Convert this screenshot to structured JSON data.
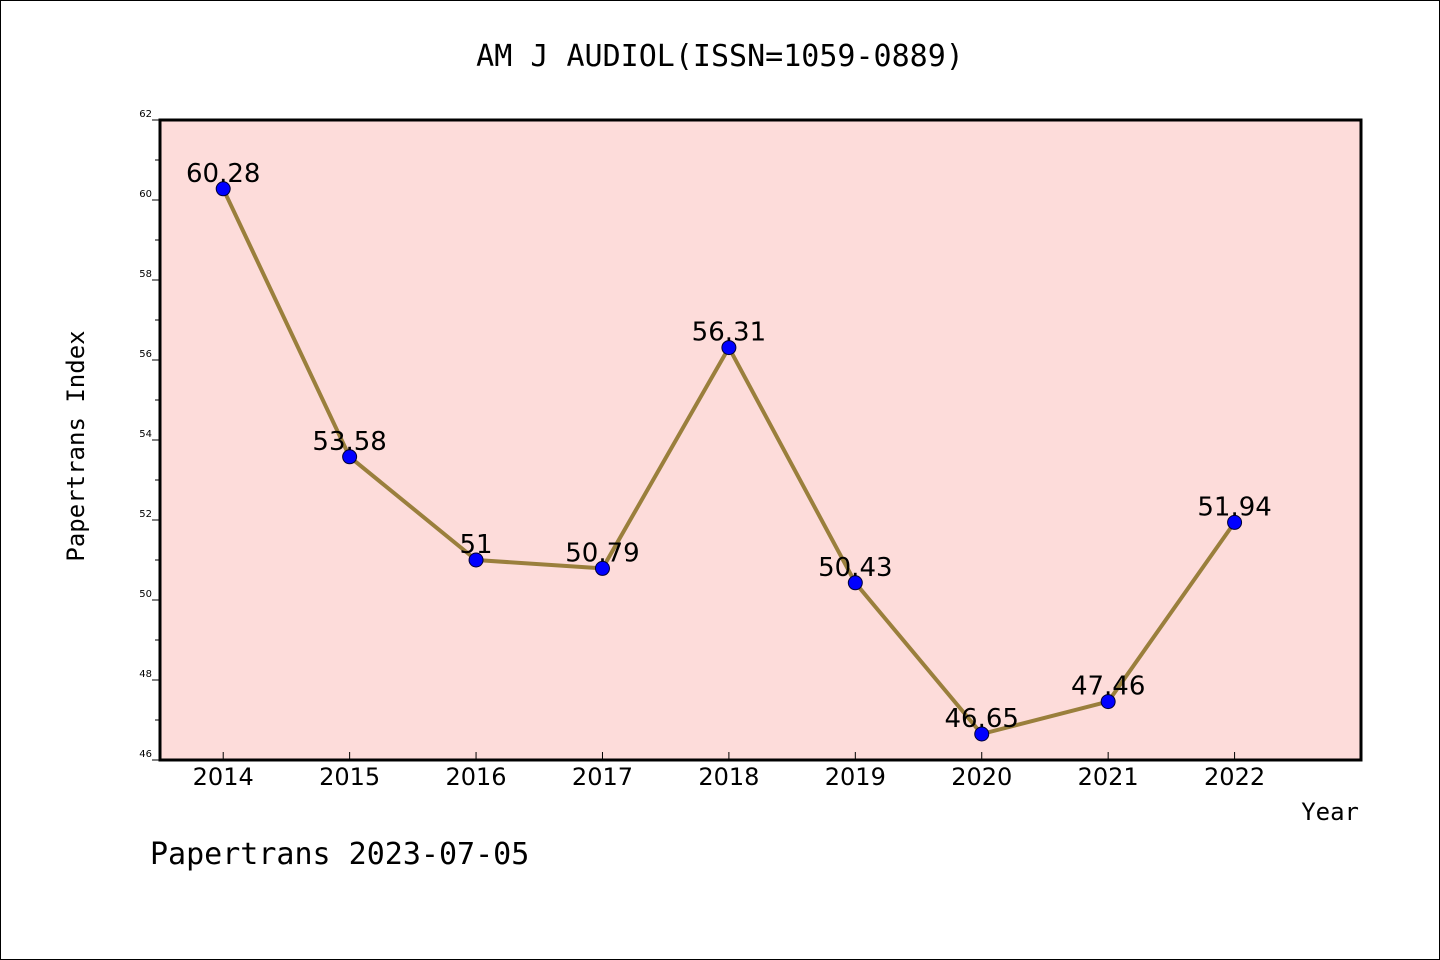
{
  "chart_data": {
    "type": "line",
    "title": "AM J AUDIOL(ISSN=1059-0889)",
    "xlabel": "Year",
    "ylabel": "Papertrans Index",
    "categories": [
      "2014",
      "2015",
      "2016",
      "2017",
      "2018",
      "2019",
      "2020",
      "2021",
      "2022"
    ],
    "series": [
      {
        "values": [
          60.28,
          53.58,
          51,
          50.79,
          56.31,
          50.43,
          46.65,
          47.46,
          51.94
        ],
        "data_labels": [
          "60.28",
          "53.58",
          "51",
          "50.79",
          "56.31",
          "50.43",
          "46.65",
          "47.46",
          "51.94"
        ]
      }
    ],
    "ylim": [
      46,
      62
    ],
    "yticks": [
      "46",
      "48",
      "50",
      "52",
      "54",
      "56",
      "58",
      "60",
      "62"
    ],
    "grid": false,
    "legend": "none",
    "colors": {
      "line": "#9a7f3c",
      "marker": "#0000ff",
      "plot_background": "#fddcda"
    }
  },
  "footer": "Papertrans 2023-07-05"
}
